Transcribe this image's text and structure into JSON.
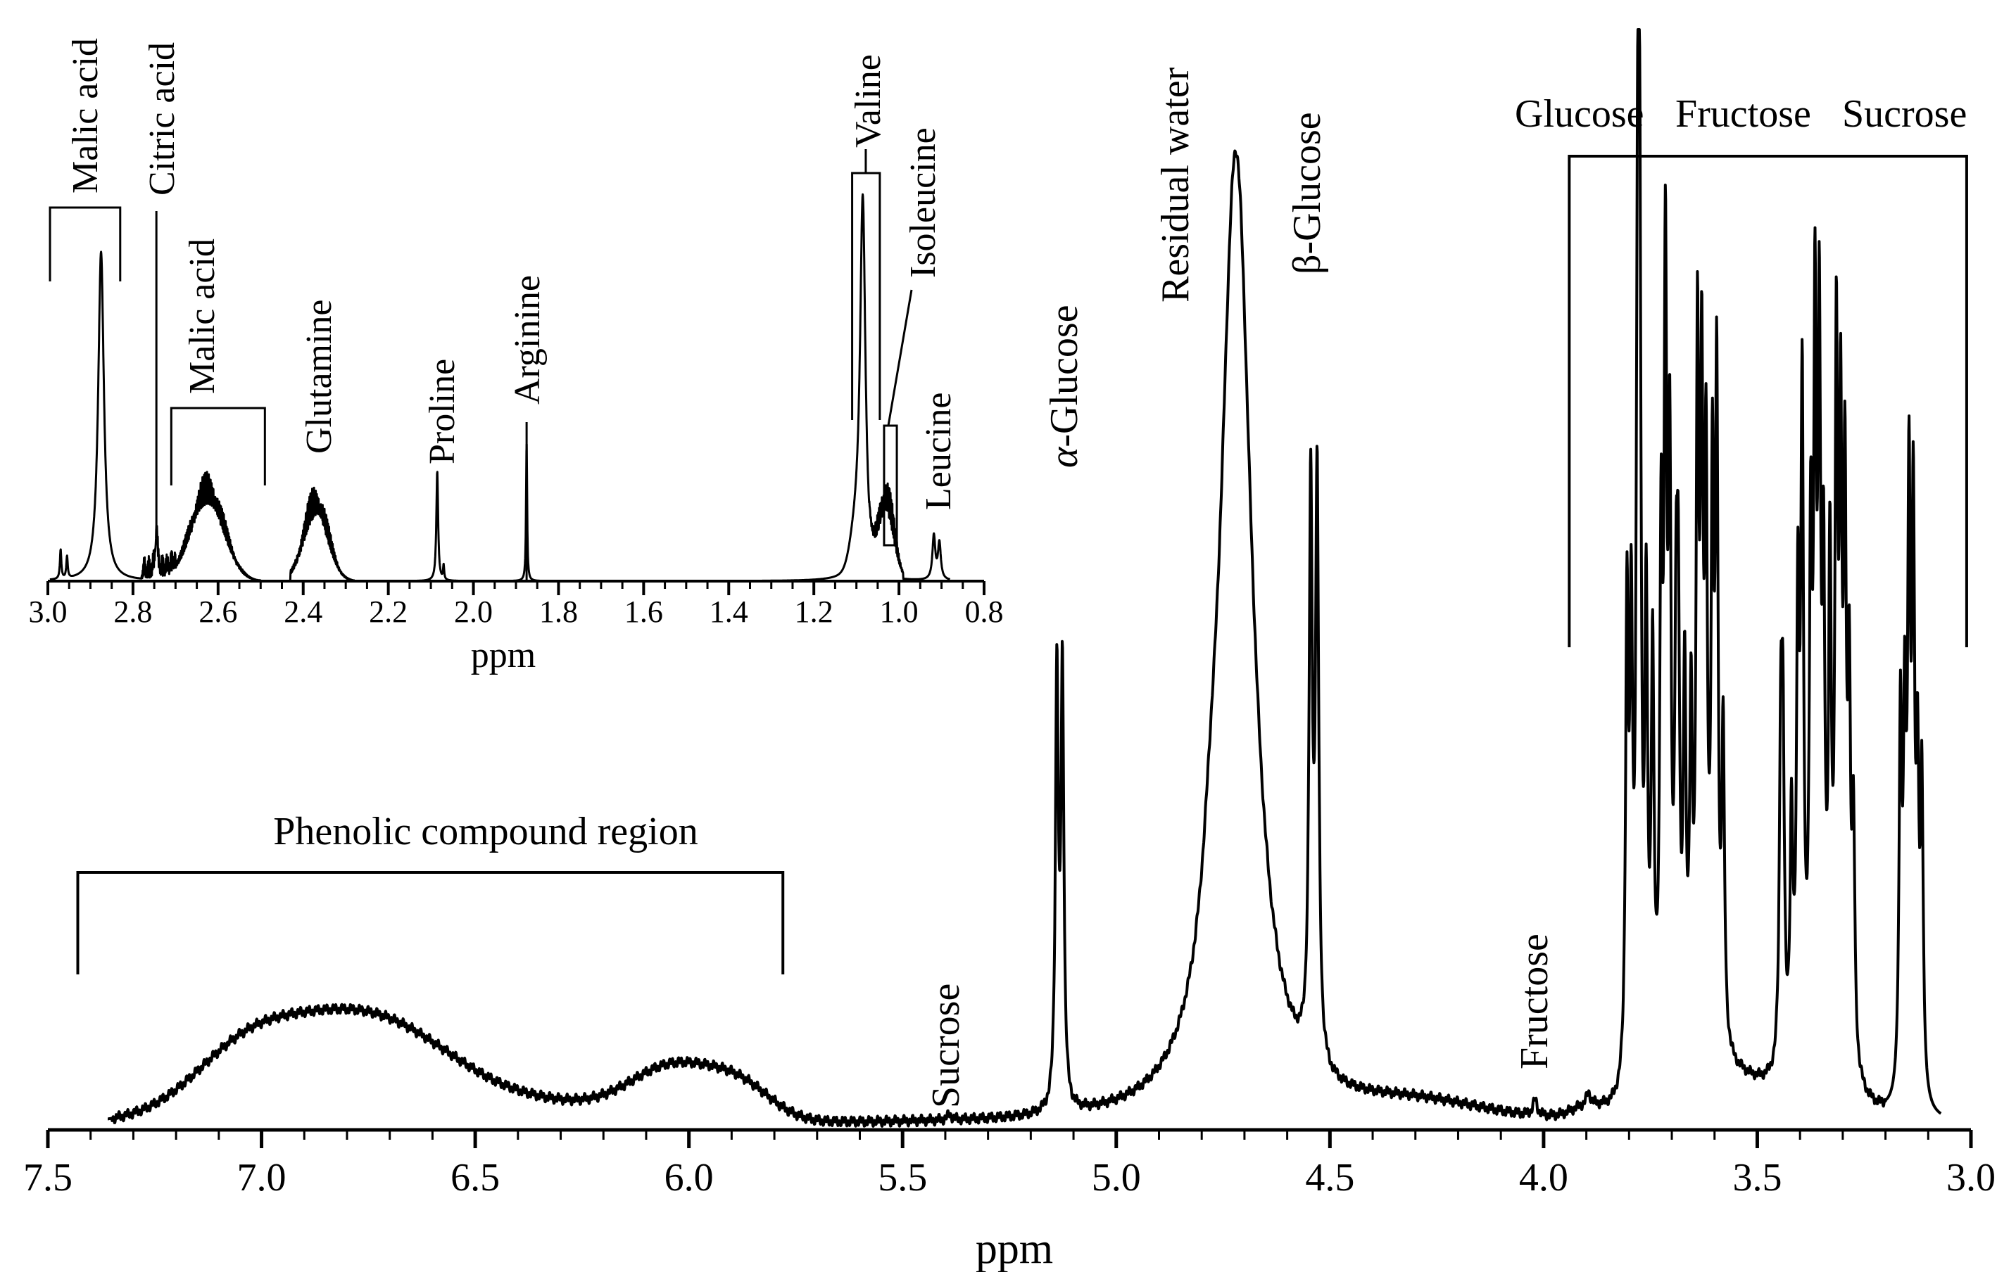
{
  "chart_data": [
    {
      "id": "main",
      "type": "line",
      "title": "",
      "xlabel": "ppm",
      "ylabel": "",
      "x_reversed": true,
      "xlim": [
        7.5,
        3.0
      ],
      "x_ticks": [
        "7.5",
        "7.0",
        "6.5",
        "6.0",
        "5.5",
        "5.0",
        "4.5",
        "4.0",
        "3.5",
        "3.0"
      ],
      "x_minor_step": 0.1,
      "grid": false,
      "legend": "none",
      "annotations": {
        "phenolic": "Phenolic compound region",
        "sucrose": "Sucrose",
        "alpha_glucose_greek": "α",
        "alpha_glucose_rest": "-Glucose",
        "residual_water": "Residual water",
        "beta_glucose": "β-Glucose",
        "fructose": "Fructose",
        "sugars_glucose": "Glucose",
        "sugars_fructose": "Fructose",
        "sugars_sucrose": "Sucrose"
      },
      "brackets": {
        "phenolic": [
          7.43,
          5.78
        ],
        "sugars": [
          3.94,
          3.01
        ]
      },
      "peaks": [
        {
          "label": "α-Glucose",
          "ppm": [
            5.14,
            5.125
          ],
          "height": 0.59
        },
        {
          "label": "Residual water",
          "ppm": 4.72,
          "height": 1.2
        },
        {
          "label": "β-Glucose",
          "ppm": [
            4.545,
            4.53
          ],
          "height": 0.77
        },
        {
          "label": "Fructose",
          "ppm": 4.02,
          "height": 0.03
        },
        {
          "label": "Sugars",
          "ppm_range": [
            3.82,
            3.1
          ],
          "max_height": 0.85
        }
      ]
    },
    {
      "id": "inset",
      "type": "line",
      "title": "",
      "xlabel": "ppm",
      "ylabel": "",
      "x_reversed": true,
      "xlim": [
        3.0,
        0.8
      ],
      "x_ticks": [
        "3.0",
        "2.8",
        "2.6",
        "2.4",
        "2.2",
        "2.0",
        "1.8",
        "1.6",
        "1.4",
        "1.2",
        "1.0",
        "0.8"
      ],
      "x_minor_step": 0.05,
      "grid": false,
      "legend": "none",
      "annotations": {
        "malic_acid_1": "Malic acid",
        "citric_acid": "Citric acid",
        "malic_acid_2": "Malic acid",
        "glutamine": "Glutamine",
        "proline": "Proline",
        "arginine": "Arginine",
        "valine": "Valine",
        "isoleucine": "Isoleucine",
        "leucine": "Leucine"
      },
      "peaks": [
        {
          "label": "Malic acid",
          "ppm": 2.875,
          "height": 0.9
        },
        {
          "label": "Citric acid",
          "ppm": 2.745,
          "height": 0.15
        },
        {
          "label": "Malic acid",
          "ppm_range": [
            2.72,
            2.52
          ],
          "max_height": 0.34
        },
        {
          "label": "Glutamine",
          "ppm_range": [
            2.42,
            2.29
          ],
          "max_height": 0.3
        },
        {
          "label": "Proline",
          "ppm": 2.085,
          "height": 0.3
        },
        {
          "label": "Arginine",
          "ppm": 1.875,
          "height": 0.4
        },
        {
          "label": "Valine",
          "ppm": 1.085,
          "height": 1.0
        },
        {
          "label": "Isoleucine",
          "ppm": 1.035,
          "height": 0.43
        },
        {
          "label": "Leucine",
          "ppm": 0.915,
          "height": 0.15
        }
      ]
    }
  ]
}
